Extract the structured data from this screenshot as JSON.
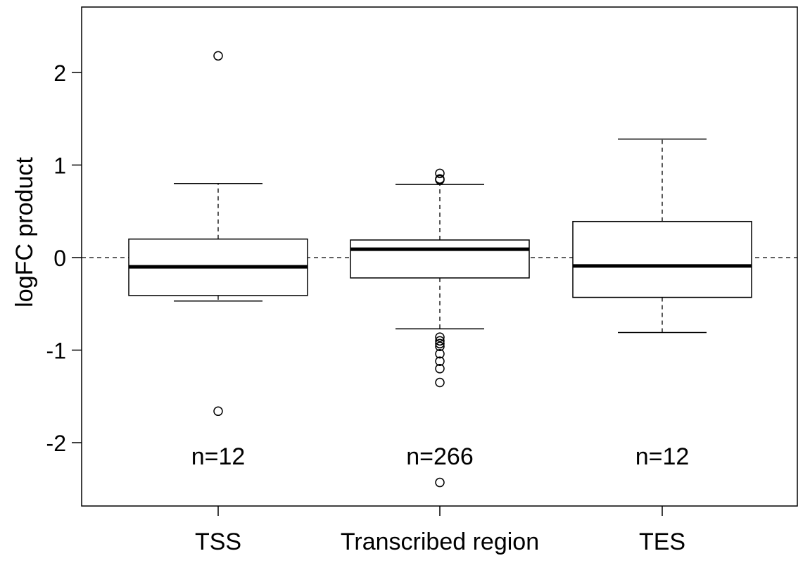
{
  "chart_data": {
    "type": "boxplot",
    "title": "",
    "xlabel": "",
    "ylabel": "logFC product",
    "ylim": [
      -2.7,
      2.75
    ],
    "yticks": [
      -2,
      -1,
      0,
      1,
      2
    ],
    "yticklabels": [
      "-2",
      "-1",
      "0",
      "1",
      "2"
    ],
    "reference_line": {
      "y": 0,
      "style": "dashed"
    },
    "grid": false,
    "categories": [
      "TSS",
      "Transcribed region",
      "TES"
    ],
    "boxes": [
      {
        "name": "TSS",
        "whisker_low": -0.47,
        "q1": -0.41,
        "median": -0.1,
        "q3": 0.2,
        "whisker_high": 0.8,
        "outliers": [
          2.18,
          -1.66
        ],
        "n_label": "n=12"
      },
      {
        "name": "Transcribed region",
        "whisker_low": -0.77,
        "q1": -0.22,
        "median": 0.09,
        "q3": 0.19,
        "whisker_high": 0.79,
        "outliers": [
          0.91,
          0.85,
          0.84,
          -0.86,
          -0.9,
          -0.93,
          -0.96,
          -1.04,
          -1.12,
          -1.2,
          -1.35,
          -2.43
        ],
        "n_label": "n=266"
      },
      {
        "name": "TES",
        "whisker_low": -0.81,
        "q1": -0.43,
        "median": -0.09,
        "q3": 0.39,
        "whisker_high": 1.28,
        "outliers": [],
        "n_label": "n=12"
      }
    ]
  }
}
